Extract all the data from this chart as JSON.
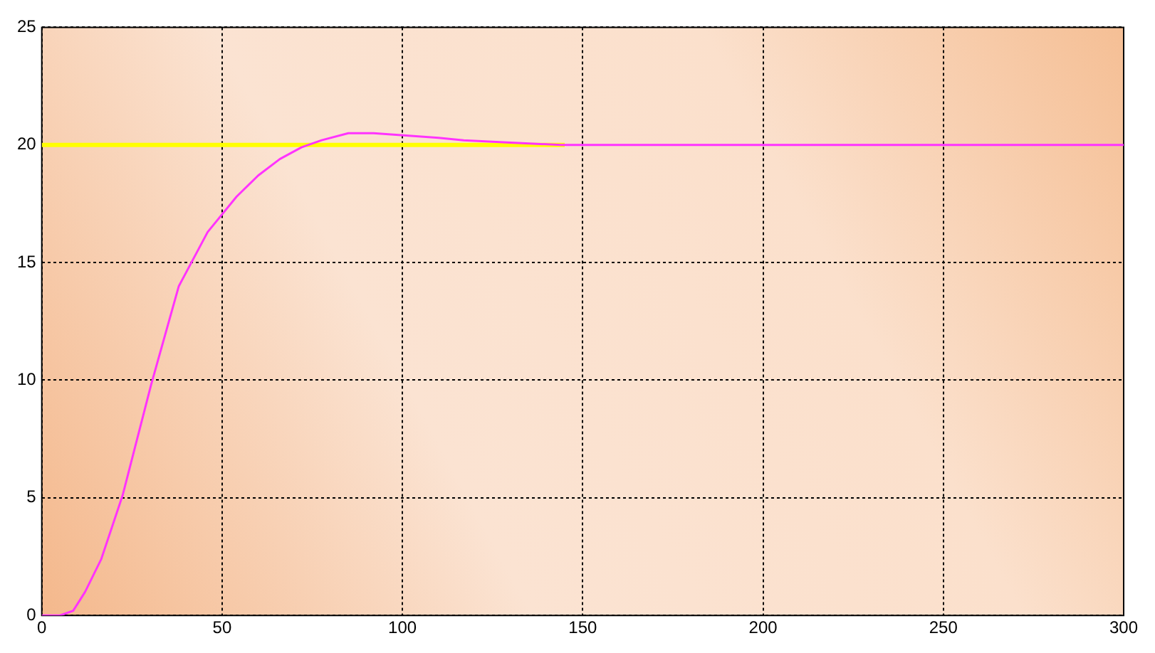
{
  "chart_data": {
    "type": "line",
    "xlim": [
      0,
      300
    ],
    "xticks": [
      0,
      50,
      100,
      150,
      200,
      250,
      300
    ],
    "ylim": [
      0,
      25
    ],
    "yticks": [
      0,
      5,
      10,
      15,
      20,
      25
    ],
    "grid": true,
    "legend": false,
    "marker": "none",
    "line_style": "solid",
    "series": [
      {
        "color": "#ffff00",
        "x": [
          0,
          145
        ],
        "values": [
          20,
          20
        ]
      },
      {
        "color": "#ff33ff",
        "x": [
          0,
          5,
          8.7,
          12,
          16.5,
          22.4,
          30.3,
          38,
          46,
          54,
          60,
          66,
          72,
          77.6,
          85,
          92,
          101,
          110,
          117,
          130,
          144,
          160,
          200,
          250,
          300
        ],
        "values": [
          0,
          0,
          0.2,
          1,
          2.4,
          5.1,
          9.8,
          14,
          16.3,
          17.8,
          18.7,
          19.4,
          19.9,
          20.2,
          20.5,
          20.5,
          20.4,
          20.3,
          20.2,
          20.1,
          20,
          20,
          20,
          20,
          20
        ]
      }
    ]
  }
}
